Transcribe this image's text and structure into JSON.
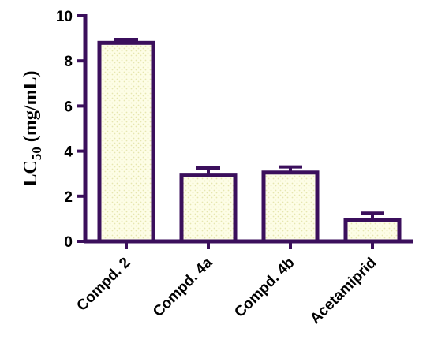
{
  "chart_data": {
    "type": "bar",
    "title": "",
    "xlabel": "",
    "ylabel_main": "LC",
    "ylabel_sub": "50",
    "ylabel_unit": " (mg/mL)",
    "categories": [
      "Compd. 2",
      "Compd. 4a",
      "Compd. 4b",
      "Acetamiprid"
    ],
    "values": [
      8.8,
      2.95,
      3.05,
      0.95
    ],
    "errors": [
      0.15,
      0.3,
      0.25,
      0.3
    ],
    "ylim": [
      0,
      10
    ],
    "yticks": [
      "0",
      "2",
      "4",
      "6",
      "8",
      "10"
    ],
    "grid": false,
    "colors": {
      "axis": "#3b0f5c",
      "bar_fill": "#fdfde6",
      "bar_edge": "#3b0f5c",
      "dots": "#e6e6b0"
    }
  }
}
